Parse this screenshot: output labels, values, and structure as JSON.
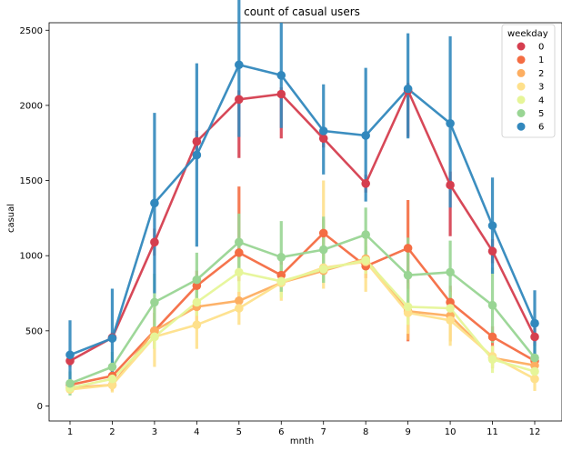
{
  "chart_data": {
    "type": "line",
    "title": "count of casual users",
    "xlabel": "mnth",
    "ylabel": "casual",
    "categories": [
      "1",
      "2",
      "3",
      "4",
      "5",
      "6",
      "7",
      "8",
      "9",
      "10",
      "11",
      "12"
    ],
    "ylim": [
      -100,
      2550
    ],
    "yticks": [
      0,
      500,
      1000,
      1500,
      2000,
      2500
    ],
    "grid": false,
    "legend": {
      "title": "weekday",
      "placement": "top-right"
    },
    "series": [
      {
        "name": "0",
        "color": "#d53e4f",
        "values": [
          300,
          455,
          1090,
          1760,
          2040,
          2075,
          1780,
          1480,
          2100,
          1470,
          1030,
          460
        ],
        "ci": [
          [
            260,
            340
          ],
          [
            420,
            490
          ],
          [
            1000,
            1180
          ],
          [
            1700,
            1830
          ],
          [
            1650,
            2100
          ],
          [
            1780,
            2120
          ],
          [
            1720,
            1850
          ],
          [
            1420,
            1540
          ],
          [
            1790,
            2150
          ],
          [
            1130,
            1560
          ],
          [
            950,
            1110
          ],
          [
            400,
            520
          ]
        ]
      },
      {
        "name": "1",
        "color": "#f46d43",
        "values": [
          140,
          200,
          500,
          800,
          1020,
          870,
          1150,
          930,
          1050,
          690,
          460,
          300
        ],
        "ci": [
          [
            110,
            170
          ],
          [
            160,
            240
          ],
          [
            380,
            620
          ],
          [
            700,
            900
          ],
          [
            830,
            1460
          ],
          [
            760,
            980
          ],
          [
            900,
            1240
          ],
          [
            850,
            1000
          ],
          [
            430,
            1370
          ],
          [
            560,
            800
          ],
          [
            390,
            530
          ],
          [
            260,
            340
          ]
        ]
      },
      {
        "name": "2",
        "color": "#fdae61",
        "values": [
          120,
          140,
          500,
          660,
          700,
          820,
          900,
          980,
          630,
          600,
          320,
          270
        ],
        "ci": [
          [
            100,
            140
          ],
          [
            100,
            180
          ],
          [
            420,
            580
          ],
          [
            540,
            780
          ],
          [
            640,
            760
          ],
          [
            760,
            880
          ],
          [
            820,
            980
          ],
          [
            900,
            1060
          ],
          [
            440,
            820
          ],
          [
            430,
            780
          ],
          [
            250,
            390
          ],
          [
            210,
            330
          ]
        ]
      },
      {
        "name": "3",
        "color": "#fee08b",
        "values": [
          110,
          140,
          460,
          540,
          650,
          820,
          920,
          960,
          620,
          570,
          330,
          180
        ],
        "ci": [
          [
            80,
            140
          ],
          [
            90,
            190
          ],
          [
            260,
            660
          ],
          [
            380,
            700
          ],
          [
            540,
            760
          ],
          [
            700,
            940
          ],
          [
            780,
            1500
          ],
          [
            760,
            1160
          ],
          [
            480,
            760
          ],
          [
            400,
            740
          ],
          [
            260,
            400
          ],
          [
            100,
            260
          ]
        ]
      },
      {
        "name": "4",
        "color": "#e6f598",
        "values": [
          120,
          180,
          460,
          690,
          890,
          830,
          910,
          970,
          660,
          650,
          310,
          230
        ],
        "ci": [
          [
            100,
            140
          ],
          [
            140,
            220
          ],
          [
            380,
            540
          ],
          [
            600,
            780
          ],
          [
            760,
            1020
          ],
          [
            720,
            940
          ],
          [
            820,
            1000
          ],
          [
            880,
            1060
          ],
          [
            540,
            780
          ],
          [
            540,
            760
          ],
          [
            220,
            400
          ],
          [
            180,
            280
          ]
        ]
      },
      {
        "name": "5",
        "color": "#99d594",
        "values": [
          150,
          260,
          690,
          840,
          1090,
          990,
          1040,
          1140,
          870,
          890,
          670,
          320
        ],
        "ci": [
          [
            70,
            230
          ],
          [
            160,
            360
          ],
          [
            500,
            880
          ],
          [
            660,
            1020
          ],
          [
            900,
            1280
          ],
          [
            760,
            1230
          ],
          [
            820,
            1260
          ],
          [
            960,
            1320
          ],
          [
            620,
            1120
          ],
          [
            680,
            1100
          ],
          [
            420,
            920
          ],
          [
            220,
            420
          ]
        ]
      },
      {
        "name": "6",
        "color": "#3288bd",
        "values": [
          340,
          450,
          1350,
          1670,
          2270,
          2200,
          1830,
          1800,
          2110,
          1880,
          1200,
          550
        ],
        "ci": [
          [
            100,
            570
          ],
          [
            150,
            780
          ],
          [
            750,
            1950
          ],
          [
            1060,
            2280
          ],
          [
            1790,
            2750
          ],
          [
            1850,
            2550
          ],
          [
            1540,
            2140
          ],
          [
            1360,
            2250
          ],
          [
            1780,
            2480
          ],
          [
            1320,
            2460
          ],
          [
            880,
            1520
          ],
          [
            340,
            770
          ]
        ]
      }
    ]
  }
}
